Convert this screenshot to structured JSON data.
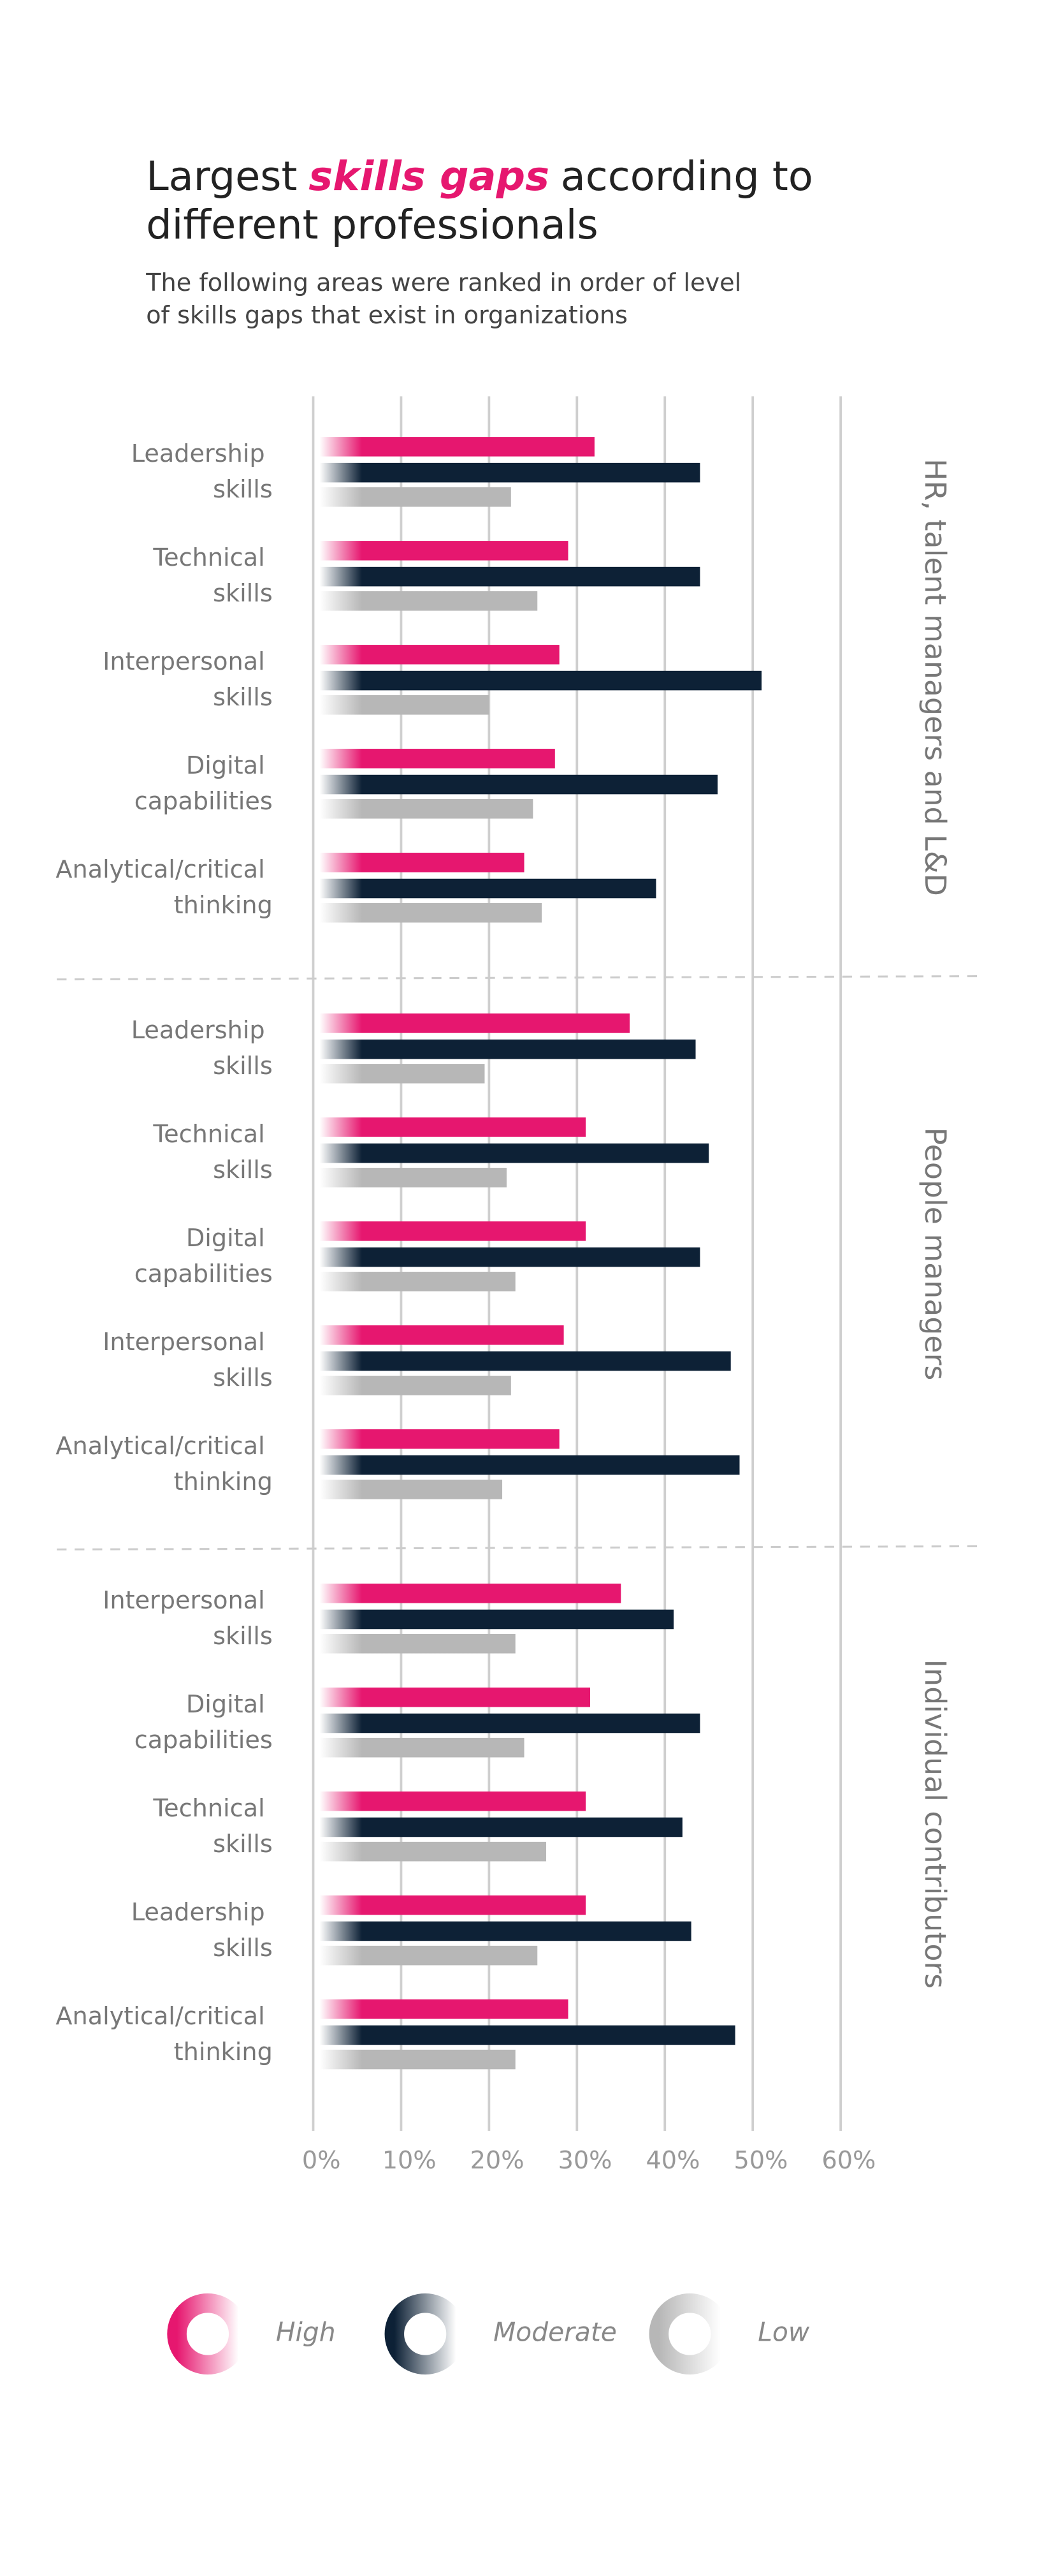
{
  "chart_data": {
    "type": "bar",
    "orientation": "horizontal",
    "title_lines": [
      [
        "Largest",
        "skills gaps",
        "according to"
      ],
      [
        "different professionals"
      ]
    ],
    "subtitle_lines": [
      "The following areas were ranked in order of level",
      "of skills gaps that exist in organizations"
    ],
    "series": [
      {
        "name": "High",
        "color": "#e6176f"
      },
      {
        "name": "Moderate",
        "color": "#0d2136"
      },
      {
        "name": "Low",
        "color": "#b7b7b7"
      }
    ],
    "panels": [
      {
        "label": "HR, talent managers and L&D",
        "categories": [
          "Leadership skills",
          "Technical skills",
          "Interpersonal skills",
          "Digital capabilities",
          "Analytical/critical thinking"
        ],
        "series_values": [
          [
            32,
            29,
            28,
            27.5,
            24
          ],
          [
            44,
            44,
            51,
            46,
            39
          ],
          [
            22.5,
            25.5,
            20,
            25,
            26
          ]
        ]
      },
      {
        "label": "People managers",
        "categories": [
          "Leadership skills",
          "Technical skills",
          "Digital capabilities",
          "Interpersonal skills",
          "Analytical/critical thinking"
        ],
        "series_values": [
          [
            36,
            31,
            31,
            28.5,
            28
          ],
          [
            43.5,
            45,
            44,
            47.5,
            48.5
          ],
          [
            19.5,
            22,
            23,
            22.5,
            21.5
          ]
        ]
      },
      {
        "label": "Individual contributors",
        "categories": [
          "Interpersonal skills",
          "Digital capabilities",
          "Technical skills",
          "Leadership skills",
          "Analytical/critical thinking"
        ],
        "series_values": [
          [
            35,
            31.5,
            31,
            31,
            29
          ],
          [
            41,
            44,
            42,
            43,
            48
          ],
          [
            23,
            24,
            26.5,
            25.5,
            23
          ]
        ]
      }
    ],
    "xlim": [
      0,
      60
    ],
    "xticks": [
      {
        "value": 0,
        "label": "0%"
      },
      {
        "value": 10,
        "label": "10%"
      },
      {
        "value": 20,
        "label": "20%"
      },
      {
        "value": 30,
        "label": "30%"
      },
      {
        "value": 40,
        "label": "40%"
      },
      {
        "value": 50,
        "label": "50%"
      },
      {
        "value": 60,
        "label": "60%"
      }
    ],
    "grid": true
  }
}
